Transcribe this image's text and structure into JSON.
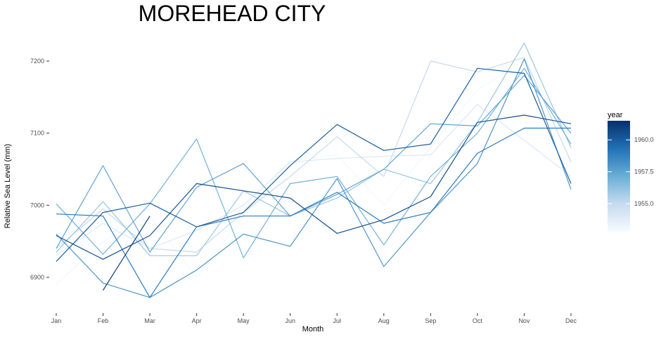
{
  "chart_data": {
    "type": "line",
    "title": "MOREHEAD CITY",
    "xlabel": "Month",
    "ylabel": "Relative Sea Level (mm)",
    "categories": [
      "Jan",
      "Feb",
      "Mar",
      "Apr",
      "May",
      "Jun",
      "Jul",
      "Aug",
      "Sep",
      "Oct",
      "Nov",
      "Dec"
    ],
    "ylim": [
      6850,
      7235
    ],
    "yticks": [
      6900,
      7000,
      7100,
      7200
    ],
    "grid": false,
    "legend": {
      "title": "year",
      "position": "right",
      "type": "colorbar",
      "range": [
        1952.8,
        1961.5
      ],
      "ticks": [
        1955.0,
        1957.5,
        1960.0
      ],
      "tick_labels": [
        "1955.0",
        "1957.5",
        "1960.0"
      ],
      "color_low": "#f7fbff",
      "color_high": "#08306b"
    },
    "series": [
      {
        "year": 1953,
        "values": [
          6890,
          6950,
          6985,
          6900,
          6985,
          7062,
          7070,
          7000,
          7080,
          7160,
          7200,
          7090
        ]
      },
      {
        "year": 1954,
        "values": [
          6930,
          6975,
          6940,
          6965,
          7000,
          7060,
          7065,
          7068,
          7070,
          7140,
          7090,
          7040
        ]
      },
      {
        "year": 1955,
        "values": [
          6940,
          6995,
          6940,
          6935,
          6990,
          7040,
          7095,
          7040,
          7200,
          7185,
          7205,
          7060
        ]
      },
      {
        "year": 1956,
        "values": [
          6935,
          7005,
          6930,
          6930,
          7020,
          6985,
          7010,
          7050,
          7030,
          7115,
          7225,
          7080
        ]
      },
      {
        "year": 1957,
        "values": [
          7002,
          6932,
          7002,
          7092,
          6927,
          7030,
          7040,
          6945,
          7040,
          7100,
          7190,
          7085
        ]
      },
      {
        "year": 1957.5,
        "values": [
          6940,
          7055,
          6935,
          7025,
          7058,
          6985,
          7015,
          7050,
          7113,
          7110,
          7180,
          7100
        ]
      },
      {
        "year": 1958,
        "values": [
          6960,
          6892,
          6872,
          6910,
          6960,
          6943,
          7037,
          6915,
          6990,
          7058,
          7203,
          7022
        ]
      },
      {
        "year": 1959,
        "values": [
          6988,
          6985,
          6872,
          6970,
          6985,
          6985,
          7018,
          6975,
          6990,
          7072,
          7107,
          7107
        ]
      },
      {
        "year": 1960,
        "values": [
          6922,
          6990,
          7003,
          6970,
          6990,
          7055,
          7112,
          7076,
          7085,
          7190,
          7183,
          7030
        ]
      },
      {
        "year": 1960.5,
        "values": [
          6958,
          6925,
          6958,
          7030,
          7020,
          7010,
          6961,
          6980,
          7012,
          7115,
          7125,
          7113
        ]
      },
      {
        "year": 1961,
        "values": [
          null,
          6882,
          6985,
          null,
          null,
          null,
          null,
          null,
          null,
          null,
          null,
          null
        ]
      }
    ]
  }
}
